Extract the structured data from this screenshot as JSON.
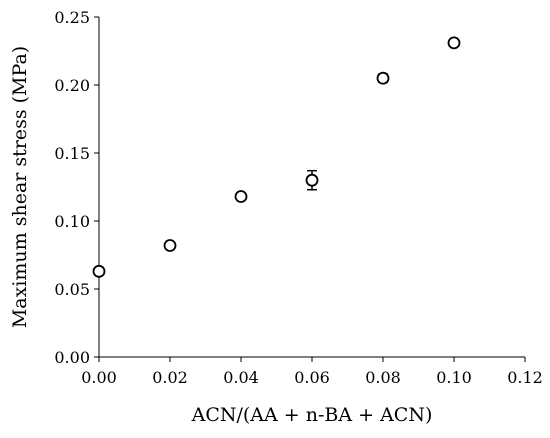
{
  "chart_data": {
    "type": "scatter",
    "title": "",
    "xlabel": "ACN/(AA + n-BA + ACN)",
    "ylabel": "Maximum shear stress (MPa)",
    "xlim": [
      0,
      0.12
    ],
    "ylim": [
      0,
      0.25
    ],
    "x_ticks": [
      0,
      0.02,
      0.04,
      0.06,
      0.08,
      0.1,
      0.12
    ],
    "x_tick_labels": [
      "0.00",
      "0.02",
      "0.04",
      "0.06",
      "0.08",
      "0.10",
      "0.12"
    ],
    "y_ticks": [
      0,
      0.05,
      0.1,
      0.15,
      0.2,
      0.25
    ],
    "y_tick_labels": [
      "0.00",
      "0.05",
      "0.10",
      "0.15",
      "0.20",
      "0.25"
    ],
    "grid": false,
    "legend": "none",
    "marker": "open-circle",
    "series": [
      {
        "x": [
          0.0,
          0.02,
          0.04,
          0.06,
          0.08,
          0.1
        ],
        "y": [
          0.063,
          0.082,
          0.118,
          0.13,
          0.205,
          0.231
        ],
        "yerr": [
          0.002,
          0.002,
          0.002,
          0.007,
          0.003,
          0.002
        ]
      }
    ]
  }
}
